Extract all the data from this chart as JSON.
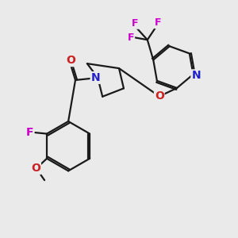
{
  "bg_color": "#eaeaea",
  "bond_color": "#1a1a1a",
  "N_color": "#2020cc",
  "O_color": "#cc2020",
  "F_color": "#cc00cc",
  "line_width": 1.6,
  "font_size": 9,
  "fig_size": [
    3.0,
    3.0
  ],
  "dpi": 100,
  "xlim": [
    0,
    10
  ],
  "ylim": [
    0,
    10
  ]
}
